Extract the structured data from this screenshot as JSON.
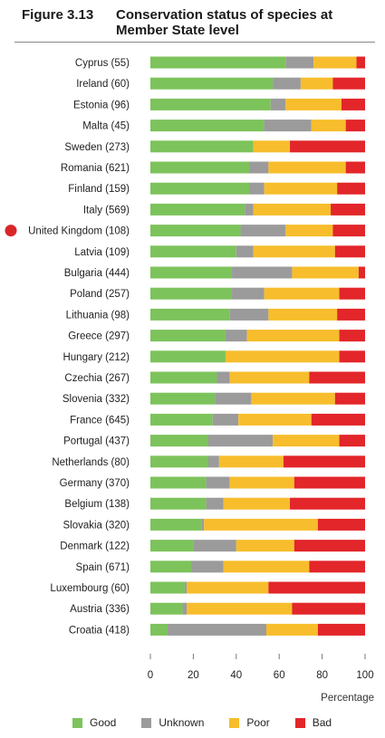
{
  "figure": {
    "number": "Figure 3.13",
    "title": "Conservation status of species at Member State level"
  },
  "chart_data": {
    "type": "bar",
    "orientation": "horizontal",
    "stacked": true,
    "xlabel": "Percentage",
    "xlim": [
      0,
      100
    ],
    "xticks": [
      0,
      20,
      40,
      60,
      80,
      100
    ],
    "highlighted_category": "United Kingdom (108)",
    "highlight_color": "#d9262b",
    "categories": [
      "Cyprus (55)",
      "Ireland (60)",
      "Estonia (96)",
      "Malta (45)",
      "Sweden (273)",
      "Romania (621)",
      "Finland (159)",
      "Italy (569)",
      "United Kingdom (108)",
      "Latvia (109)",
      "Bulgaria (444)",
      "Poland (257)",
      "Lithuania (98)",
      "Greece (297)",
      "Hungary (212)",
      "Czechia (267)",
      "Slovenia (332)",
      "France (645)",
      "Portugal (437)",
      "Netherlands (80)",
      "Germany (370)",
      "Belgium (138)",
      "Slovakia (320)",
      "Denmark (122)",
      "Spain (671)",
      "Luxembourg (60)",
      "Austria (336)",
      "Croatia (418)"
    ],
    "series": [
      {
        "name": "Good",
        "color": "#7dc35b",
        "values": [
          63,
          57,
          56,
          53,
          48,
          46,
          46,
          44,
          42,
          40,
          38,
          38,
          37,
          35,
          35,
          31,
          30,
          29,
          27,
          27,
          26,
          26,
          24,
          20,
          19,
          16,
          15,
          8
        ]
      },
      {
        "name": "Unknown",
        "color": "#9b9b9b",
        "values": [
          13,
          13,
          7,
          22,
          0,
          9,
          7,
          4,
          21,
          8,
          28,
          15,
          18,
          10,
          0,
          6,
          17,
          12,
          30,
          5,
          11,
          8,
          1,
          20,
          15,
          1,
          2,
          46
        ]
      },
      {
        "name": "Poor",
        "color": "#f7bd2c",
        "values": [
          20,
          15,
          26,
          16,
          17,
          36,
          34,
          36,
          22,
          38,
          31,
          35,
          32,
          43,
          53,
          37,
          39,
          34,
          31,
          30,
          30,
          31,
          53,
          27,
          40,
          38,
          49,
          24
        ]
      },
      {
        "name": "Bad",
        "color": "#e2262a",
        "values": [
          4,
          15,
          11,
          9,
          35,
          9,
          13,
          16,
          15,
          14,
          3,
          12,
          13,
          12,
          12,
          26,
          14,
          25,
          12,
          38,
          33,
          35,
          22,
          33,
          26,
          45,
          34,
          22
        ]
      }
    ]
  }
}
